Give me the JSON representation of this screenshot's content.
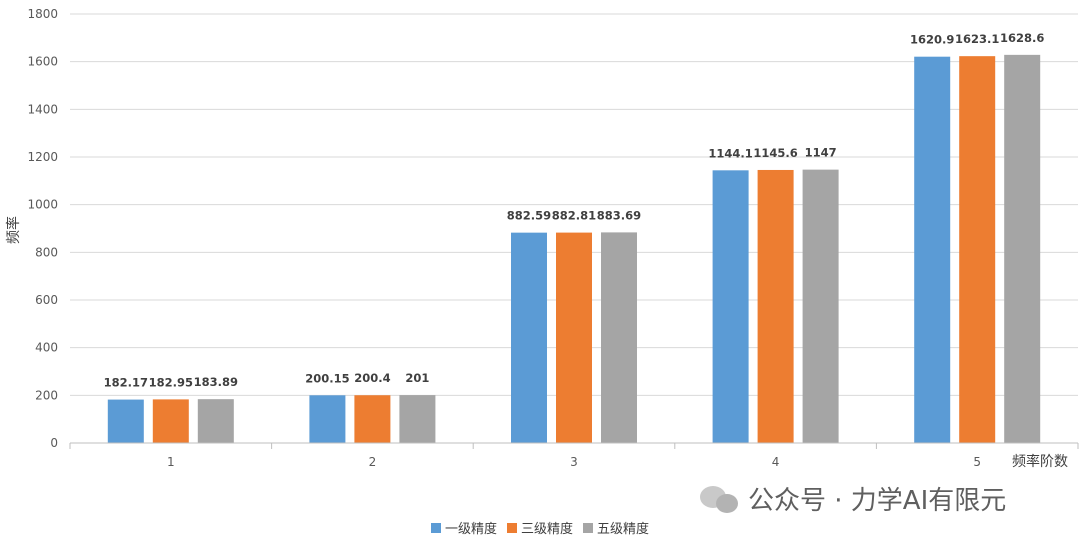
{
  "chart_data": {
    "type": "bar",
    "categories": [
      "1",
      "2",
      "3",
      "4",
      "5"
    ],
    "series": [
      {
        "name": "一级精度",
        "color": "#5b9bd5",
        "values": [
          182.17,
          200.15,
          882.59,
          1144.1,
          1620.9
        ]
      },
      {
        "name": "三级精度",
        "color": "#ed7d31",
        "values": [
          182.95,
          200.4,
          882.81,
          1145.6,
          1623.1
        ]
      },
      {
        "name": "五级精度",
        "color": "#a5a5a5",
        "values": [
          183.89,
          201,
          883.69,
          1147,
          1628.6
        ]
      }
    ],
    "xlabel": "频率阶数",
    "ylabel": "频率",
    "ylim": [
      0,
      1800
    ],
    "yticks": [
      0,
      200,
      400,
      600,
      800,
      1000,
      1200,
      1400,
      1600,
      1800
    ],
    "grid": true,
    "legend_position": "bottom"
  },
  "watermark": {
    "text": "公众号 · 力学AI有限元",
    "icon": "wechat-icon"
  }
}
